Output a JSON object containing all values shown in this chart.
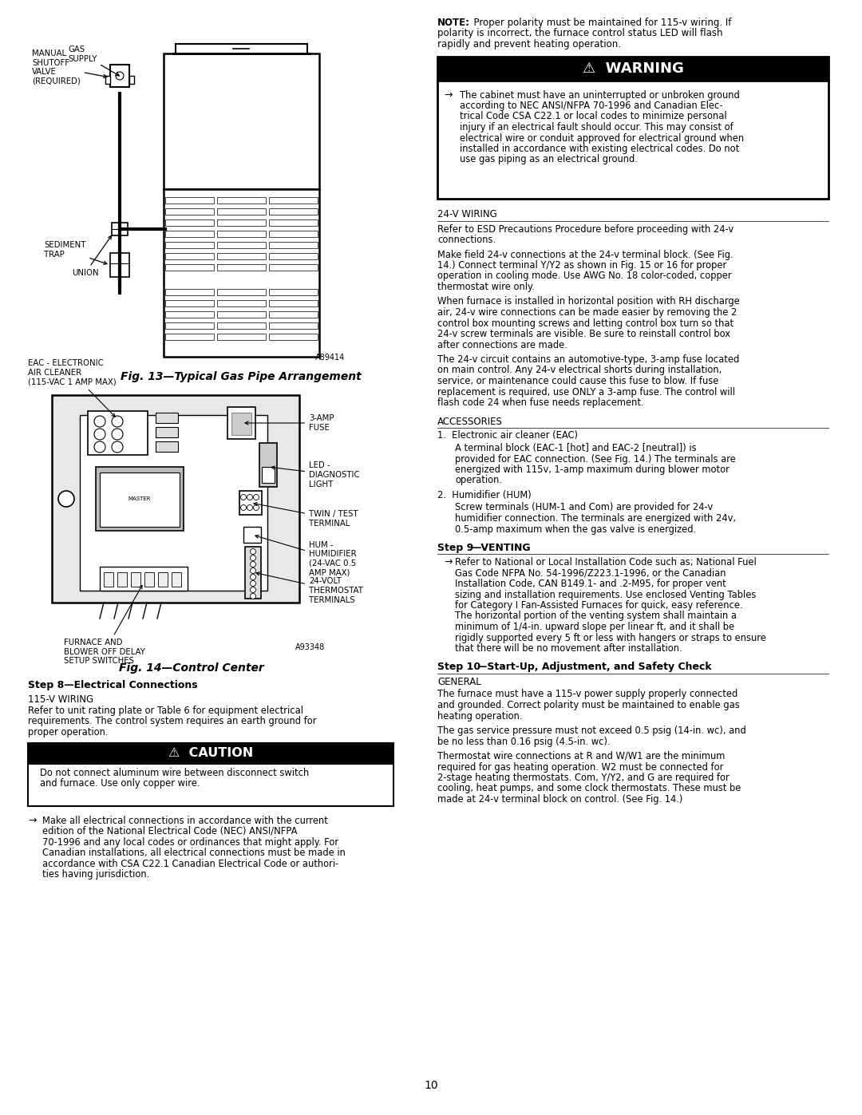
{
  "page_bg": "#ffffff",
  "page_number": "10",
  "fig13_caption": "Fig. 13—Typical Gas Pipe Arrangement",
  "fig13_code": "A89414",
  "fig14_caption": "Fig. 14—Control Center",
  "fig14_code": "A93348",
  "warning_title": "⚠  WARNING",
  "warning_text_lines": [
    "The cabinet must have an uninterrupted or unbroken ground",
    "according to NEC ANSI/NFPA 70-1996 and Canadian Elec-",
    "trical Code CSA C22.1 or local codes to minimize personal",
    "injury if an electrical fault should occur. This may consist of",
    "electrical wire or conduit approved for electrical ground when",
    "installed in accordance with existing electrical codes. Do not",
    "use gas piping as an electrical ground."
  ],
  "caution_title": "⚠  CAUTION",
  "caution_text_lines": [
    "Do not connect aluminum wire between disconnect switch",
    "and furnace. Use only copper wire."
  ],
  "note_bold": "NOTE:",
  "note_rest": "  Proper polarity must be maintained for 115-v wiring. If polarity is incorrect, the furnace control status LED will flash rapidly and prevent heating operation.",
  "step8_header": "Step 8—Electrical Connections",
  "v115_header": "115-V WIRING",
  "v115_lines": [
    "Refer to unit rating plate or Table 6 for equipment electrical",
    "requirements. The control system requires an earth ground for",
    "proper operation."
  ],
  "v24_header": "24-V WIRING",
  "v24_lines1": [
    "Refer to ESD Precautions Procedure before proceeding with 24-v",
    "connections."
  ],
  "v24_lines2": [
    "Make field 24-v connections at the 24-v terminal block. (See Fig.",
    "14.) Connect terminal Y/Y2 as shown in Fig. 15 or 16 for proper",
    "operation in cooling mode. Use AWG No. 18 color-coded, copper",
    "thermostat wire only."
  ],
  "v24_lines3": [
    "When furnace is installed in horizontal position with RH discharge",
    "air, 24-v wire connections can be made easier by removing the 2",
    "control box mounting screws and letting control box turn so that",
    "24-v screw terminals are visible. Be sure to reinstall control box",
    "after connections are made."
  ],
  "v24_lines4": [
    "The 24-v circuit contains an automotive-type, 3-amp fuse located",
    "on main control. Any 24-v electrical shorts during installation,",
    "service, or maintenance could cause this fuse to blow. If fuse",
    "replacement is required, use ONLY a 3-amp fuse. The control will",
    "flash code 24 when fuse needs replacement."
  ],
  "accessories_header": "ACCESSORIES",
  "acc_item1": "1.  Electronic air cleaner (EAC)",
  "acc_item1_lines": [
    "A terminal block (EAC-1 [hot] and EAC-2 [neutral]) is",
    "provided for EAC connection. (See Fig. 14.) The terminals are",
    "energized with 115v, 1-amp maximum during blower motor",
    "operation."
  ],
  "acc_item2": "2.  Humidifier (HUM)",
  "acc_item2_lines": [
    "Screw terminals (HUM-1 and Com) are provided for 24-v",
    "humidifier connection. The terminals are energized with 24v,",
    "0.5-amp maximum when the gas valve is energized."
  ],
  "step9_bold": "Step 9",
  "step9_rest": "—VENTING",
  "step9_lines": [
    "Refer to National or Local Installation Code such as; National Fuel",
    "Gas Code NFPA No. 54-1996/Z223.1-1996, or the Canadian",
    "Installation Code, CAN B149.1- and .2-M95, for proper vent",
    "sizing and installation requirements. Use enclosed Venting Tables",
    "for Category I Fan-Assisted Furnaces for quick, easy reference.",
    "The horizontal portion of the venting system shall maintain a",
    "minimum of 1/4-in. upward slope per linear ft, and it shall be",
    "rigidly supported every 5 ft or less with hangers or straps to ensure",
    "that there will be no movement after installation."
  ],
  "step10_bold": "Step 10",
  "step10_rest": "—Start-Up, Adjustment, and Safety Check",
  "general_header": "GENERAL",
  "general_lines1": [
    "The furnace must have a 115-v power supply properly connected",
    "and grounded. Correct polarity must be maintained to enable gas",
    "heating operation."
  ],
  "general_lines2": [
    "The gas service pressure must not exceed 0.5 psig (14-in. wc), and",
    "be no less than 0.16 psig (4.5-in. wc)."
  ],
  "general_lines3": [
    "Thermostat wire connections at R and W/W1 are the minimum",
    "required for gas heating operation. W2 must be connected for",
    "2-stage heating thermostats. Com, Y/Y2, and G are required for",
    "cooling, heat pumps, and some clock thermostats. These must be",
    "made at 24-v terminal block on control. (See Fig. 14.)"
  ],
  "make_all_lines": [
    "Make all electrical connections in accordance with the current",
    "edition of the National Electrical Code (NEC) ANSI/NFPA",
    "70-1996 and any local codes or ordinances that might apply. For",
    "Canadian installations, all electrical connections must be made in",
    "accordance with CSA C22.1 Canadian Electrical Code or authori-",
    "ties having jurisdiction."
  ]
}
